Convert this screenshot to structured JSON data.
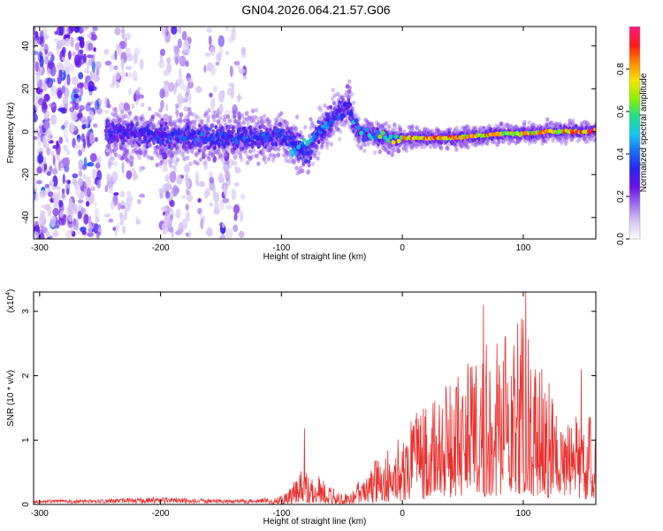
{
  "title": "GN04.2026.064.21.57.G06",
  "colors": {
    "line": "#e8312f",
    "colormap": [
      "#ffffff",
      "#d8c8f4",
      "#a070ec",
      "#6a12e8",
      "#2a22f0",
      "#1a6cf7",
      "#18c8ef",
      "#22dd88",
      "#8ef000",
      "#f7e400",
      "#ff8a00",
      "#ff1a1a",
      "#ff1a7a"
    ]
  },
  "chart_data": [
    {
      "type": "heatmap",
      "xlabel": "Height of straight line (km)",
      "ylabel": "Frequency (Hz)",
      "xlim": [
        -305,
        160
      ],
      "ylim": [
        -50,
        49
      ],
      "xticks": [
        -300,
        -200,
        -100,
        0,
        100
      ],
      "yticks": [
        -40,
        -20,
        0,
        20,
        40
      ],
      "ridge": {
        "x": [
          -245,
          -220,
          -200,
          -170,
          -140,
          -120,
          -100,
          -90,
          -80,
          -70,
          -60,
          -50,
          -45,
          -40,
          -35,
          -30,
          -20,
          -10,
          0,
          20,
          40,
          60,
          80,
          100,
          120,
          140,
          155,
          160
        ],
        "frequency": [
          0,
          -1,
          -2,
          -3,
          -3,
          -3,
          -2,
          -5,
          -10,
          -2,
          5,
          10,
          13,
          3,
          0,
          -1,
          -2,
          -3,
          -3,
          -3,
          -3,
          -2,
          -1,
          -1,
          0,
          0,
          0,
          1
        ],
        "amplitude": [
          0.3,
          0.32,
          0.35,
          0.4,
          0.4,
          0.38,
          0.4,
          0.35,
          0.4,
          0.38,
          0.4,
          0.35,
          0.3,
          0.5,
          0.55,
          0.5,
          0.6,
          0.7,
          0.85,
          0.9,
          0.85,
          0.85,
          0.8,
          0.82,
          0.85,
          0.9,
          0.95,
          0.95
        ]
      },
      "colorbar": {
        "label": "Normalized spectral amplitude",
        "ticks": [
          "0.0",
          "0.2",
          "0.4",
          "0.6",
          "0.8"
        ],
        "range": [
          0,
          1
        ]
      }
    },
    {
      "type": "line",
      "xlabel": "Height of straight line (km)",
      "ylabel": "SNR (10 * v/v)",
      "multiplier": "(x10",
      "exponent": "4",
      "exponent_close": ")",
      "xlim": [
        -305,
        160
      ],
      "ylim": [
        0,
        3.3
      ],
      "xticks": [
        -300,
        -200,
        -100,
        0,
        100
      ],
      "yticks": [
        0,
        1,
        2,
        3
      ],
      "envelope": {
        "x": [
          -305,
          -250,
          -200,
          -180,
          -150,
          -120,
          -105,
          -95,
          -90,
          -85,
          -80,
          -70,
          -60,
          -50,
          -40,
          -30,
          -20,
          -10,
          0,
          10,
          20,
          30,
          40,
          50,
          60,
          70,
          80,
          90,
          100,
          110,
          120,
          130,
          140,
          150,
          160
        ],
        "y": [
          0.05,
          0.06,
          0.1,
          0.08,
          0.06,
          0.06,
          0.1,
          0.2,
          0.35,
          0.6,
          0.5,
          0.45,
          0.3,
          0.15,
          0.3,
          0.5,
          0.75,
          0.9,
          1.1,
          1.4,
          1.6,
          1.8,
          2.0,
          2.2,
          2.3,
          2.5,
          2.5,
          2.8,
          3.0,
          2.4,
          2.0,
          1.5,
          1.6,
          1.7,
          1.1
        ]
      },
      "peaks": [
        {
          "x": -81,
          "y": 1.18
        },
        {
          "x": 67,
          "y": 3.1
        },
        {
          "x": 102,
          "y": 3.3
        },
        {
          "x": 148,
          "y": 2.1
        }
      ]
    }
  ]
}
